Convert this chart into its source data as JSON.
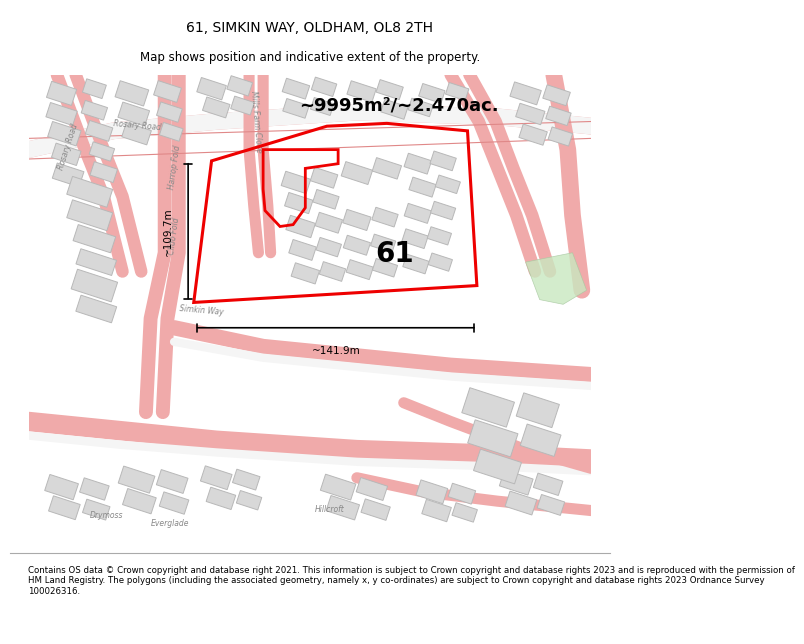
{
  "title": "61, SIMKIN WAY, OLDHAM, OL8 2TH",
  "subtitle": "Map shows position and indicative extent of the property.",
  "footer": "Contains OS data © Crown copyright and database right 2021. This information is subject to Crown copyright and database rights 2023 and is reproduced with the permission of\nHM Land Registry. The polygons (including the associated geometry, namely x, y co-ordinates) are subject to Crown copyright and database rights 2023 Ordnance Survey\n100026316.",
  "area_label": "~9995m²/~2.470ac.",
  "plot_number": "61",
  "width_label": "~141.9m",
  "height_label": "~109.7m",
  "background_color": "#ffffff",
  "road_pink": "#f0aaaa",
  "road_outline": "#e08888",
  "building_fill": "#d8d8d8",
  "building_edge": "#b0b0b0",
  "green_patch": "#c8e0c0",
  "title_fontsize": 10,
  "subtitle_fontsize": 8.5,
  "footer_fontsize": 6.2
}
